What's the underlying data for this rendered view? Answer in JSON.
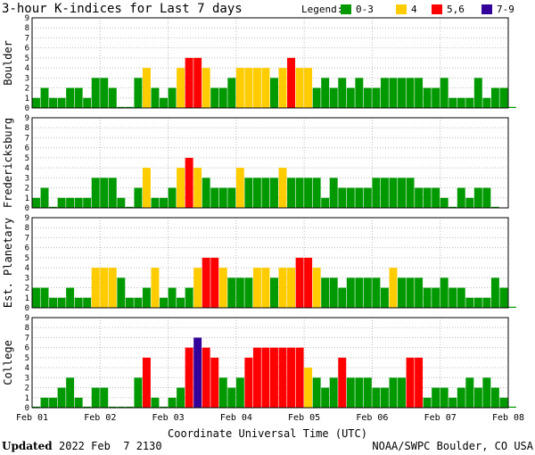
{
  "chart_data": {
    "type": "bar",
    "title": "3-hour K-indices for Last 7 days",
    "legend": {
      "label": "Legend:",
      "placement": "top-right",
      "items": [
        {
          "label": "0-3",
          "color": "#009900"
        },
        {
          "label": "4",
          "color": "#ffcc00"
        },
        {
          "label": "5,6",
          "color": "#ff0000"
        },
        {
          "label": "7-9",
          "color": "#330099"
        }
      ]
    },
    "ylim": [
      0,
      9
    ],
    "y_ticks": [
      "0",
      "1",
      "2",
      "3",
      "4",
      "5",
      "6",
      "7",
      "8",
      "9"
    ],
    "x_ticks": [
      "Feb 01",
      "Feb 02",
      "Feb 03",
      "Feb 04",
      "Feb 05",
      "Feb 06",
      "Feb 07",
      "Feb 08"
    ],
    "xlabel": "Coordinate Universal Time (UTC)",
    "grid": true,
    "panels": [
      {
        "name": "Boulder",
        "values": [
          1,
          2,
          1,
          1,
          2,
          2,
          1,
          3,
          3,
          2,
          0,
          0,
          3,
          4,
          2,
          1,
          2,
          4,
          5,
          5,
          4,
          2,
          2,
          3,
          4,
          4,
          4,
          4,
          3,
          4,
          5,
          4,
          4,
          2,
          3,
          2,
          3,
          2,
          3,
          2,
          2,
          3,
          3,
          3,
          3,
          3,
          2,
          2,
          3,
          1,
          1,
          1,
          3,
          1,
          2,
          2,
          0
        ]
      },
      {
        "name": "Fredericksburg",
        "values": [
          1,
          2,
          0,
          1,
          1,
          1,
          1,
          3,
          3,
          3,
          1,
          0,
          2,
          4,
          1,
          1,
          2,
          4,
          5,
          4,
          3,
          2,
          2,
          2,
          4,
          3,
          3,
          3,
          3,
          4,
          3,
          3,
          3,
          3,
          1,
          3,
          2,
          2,
          2,
          2,
          3,
          3,
          3,
          3,
          3,
          2,
          2,
          2,
          1,
          0,
          2,
          1,
          2,
          2,
          0
        ]
      },
      {
        "name": "Est. Planetary",
        "values": [
          2,
          2,
          1,
          1,
          2,
          1,
          1,
          4,
          4,
          4,
          3,
          1,
          1,
          2,
          4,
          1,
          2,
          1,
          2,
          4,
          5,
          5,
          4,
          3,
          3,
          3,
          4,
          4,
          3,
          4,
          4,
          5,
          5,
          4,
          3,
          3,
          2,
          3,
          3,
          3,
          3,
          2,
          4,
          3,
          3,
          3,
          2,
          2,
          3,
          2,
          2,
          1,
          1,
          1,
          3,
          2,
          0
        ]
      },
      {
        "name": "College",
        "values": [
          0,
          1,
          1,
          2,
          3,
          1,
          0,
          2,
          2,
          0,
          0,
          0,
          3,
          5,
          1,
          0,
          1,
          2,
          6,
          7,
          6,
          5,
          3,
          2,
          3,
          5,
          6,
          6,
          6,
          6,
          6,
          6,
          4,
          3,
          2,
          3,
          5,
          3,
          3,
          3,
          2,
          2,
          3,
          3,
          5,
          5,
          1,
          2,
          2,
          1,
          2,
          3,
          2,
          3,
          2,
          1,
          0
        ]
      }
    ]
  },
  "footer": {
    "updated_label": "Updated",
    "updated_value": "2022 Feb  7 2130",
    "source": "NOAA/SWPC Boulder, CO USA"
  }
}
